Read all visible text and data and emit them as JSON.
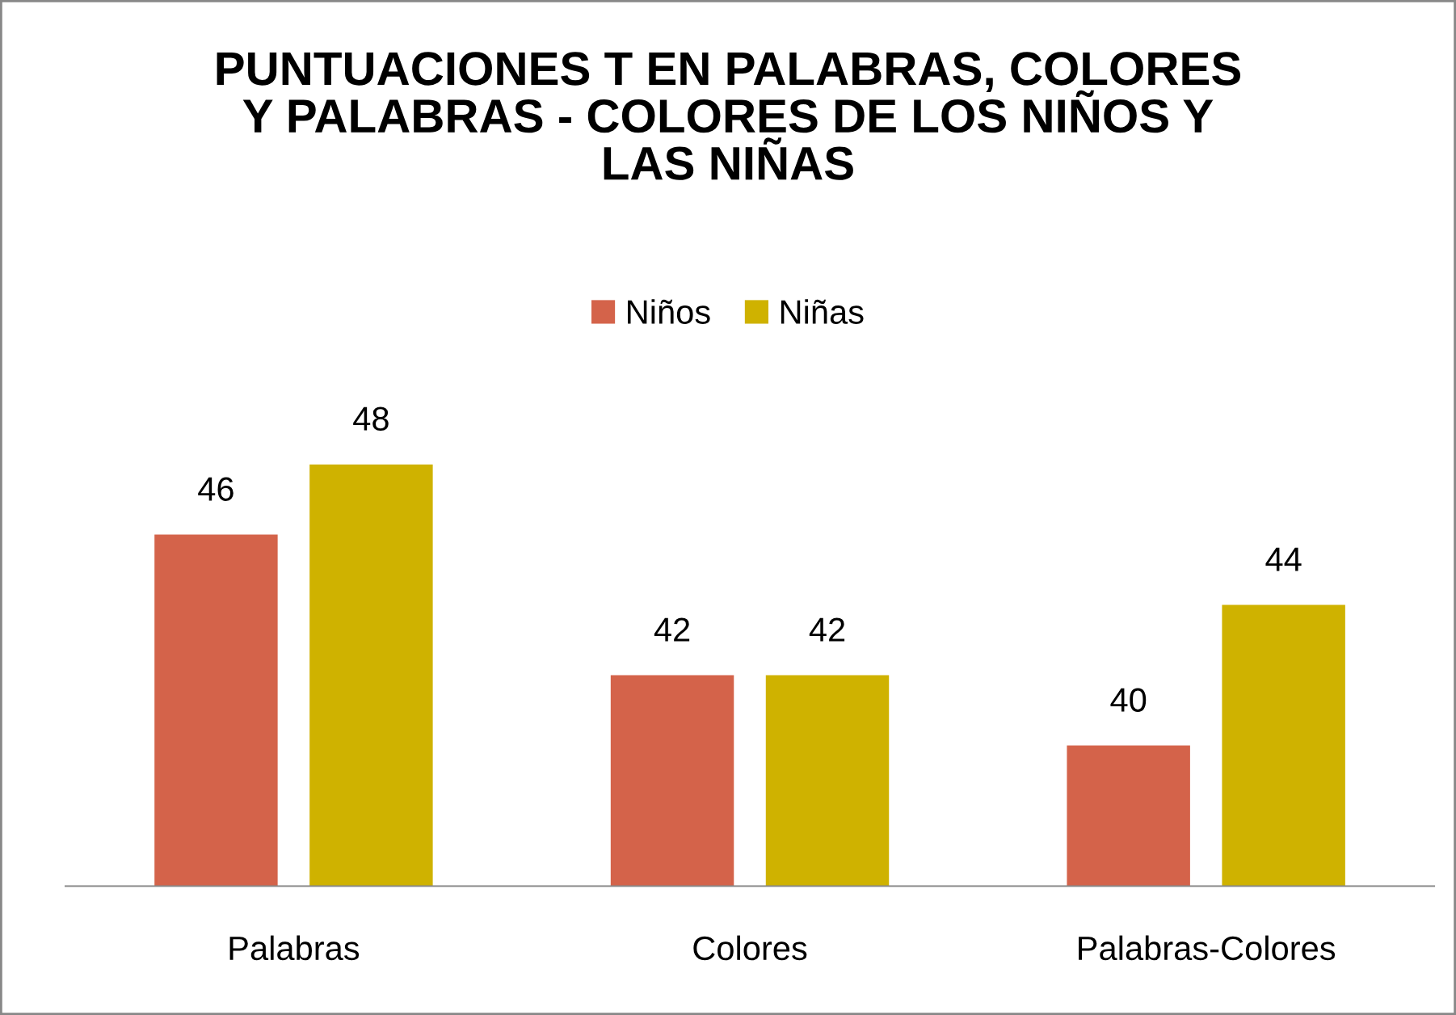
{
  "chart_data": {
    "type": "bar",
    "title": "PUNTUACIONES T EN PALABRAS, COLORES\nY PALABRAS - COLORES DE LOS NIÑOS Y\nLAS NIÑAS",
    "categories": [
      "Palabras",
      "Colores",
      "Palabras-Colores"
    ],
    "series": [
      {
        "name": "Niños",
        "color": "#d4634a",
        "values": [
          46,
          42,
          40
        ]
      },
      {
        "name": "Niñas",
        "color": "#cfb200",
        "values": [
          48,
          42,
          44
        ]
      }
    ],
    "ylim": [
      36,
      48
    ],
    "tick_labels": "x",
    "data_labels": true,
    "legend": "top"
  }
}
